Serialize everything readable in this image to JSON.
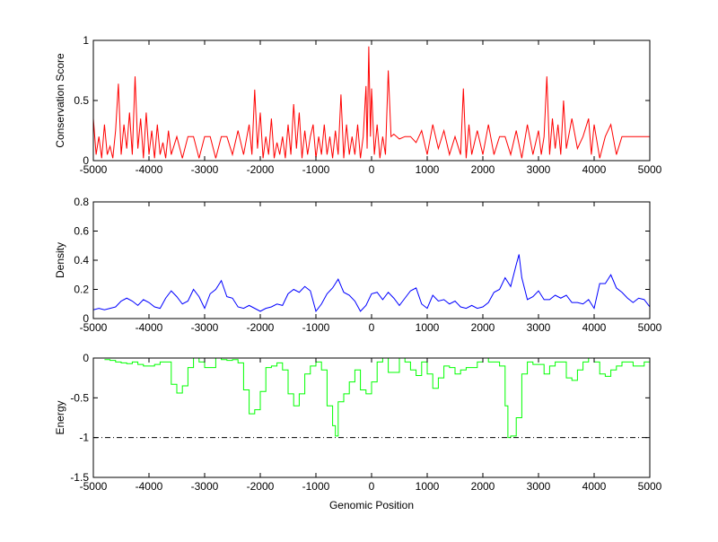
{
  "chart_data": [
    {
      "type": "line",
      "ylabel": "Conservation Score",
      "xlabel": "",
      "xlim": [
        -5000,
        5000
      ],
      "ylim": [
        0,
        1
      ],
      "xticks": [
        -5000,
        -4000,
        -3000,
        -2000,
        -1000,
        0,
        1000,
        2000,
        3000,
        4000,
        5000
      ],
      "yticks": [
        0,
        0.5,
        1
      ],
      "ytick_labels": [
        "0",
        "0.5",
        "1"
      ],
      "color": "#ff0000",
      "x": [
        -5000,
        -4950,
        -4900,
        -4850,
        -4800,
        -4750,
        -4700,
        -4650,
        -4600,
        -4550,
        -4500,
        -4450,
        -4400,
        -4350,
        -4300,
        -4250,
        -4200,
        -4150,
        -4100,
        -4050,
        -4000,
        -3950,
        -3900,
        -3850,
        -3800,
        -3750,
        -3700,
        -3650,
        -3600,
        -3500,
        -3400,
        -3300,
        -3200,
        -3100,
        -3000,
        -2900,
        -2800,
        -2700,
        -2600,
        -2500,
        -2400,
        -2300,
        -2200,
        -2150,
        -2100,
        -2050,
        -2000,
        -1950,
        -1900,
        -1850,
        -1800,
        -1750,
        -1700,
        -1650,
        -1600,
        -1550,
        -1500,
        -1450,
        -1400,
        -1350,
        -1300,
        -1250,
        -1200,
        -1150,
        -1100,
        -1050,
        -1000,
        -950,
        -900,
        -850,
        -800,
        -750,
        -700,
        -650,
        -600,
        -550,
        -500,
        -450,
        -400,
        -350,
        -300,
        -250,
        -200,
        -150,
        -100,
        -80,
        -50,
        -20,
        0,
        50,
        100,
        150,
        200,
        250,
        300,
        350,
        400,
        500,
        600,
        700,
        800,
        900,
        1000,
        1100,
        1200,
        1300,
        1400,
        1500,
        1600,
        1650,
        1700,
        1750,
        1800,
        1900,
        2000,
        2100,
        2200,
        2300,
        2400,
        2500,
        2600,
        2700,
        2800,
        2900,
        3000,
        3050,
        3100,
        3150,
        3200,
        3250,
        3300,
        3350,
        3400,
        3450,
        3500,
        3600,
        3700,
        3800,
        3900,
        3950,
        4000,
        4100,
        4200,
        4300,
        4400,
        4500,
        4600,
        4700,
        4800,
        4900,
        5000
      ],
      "values": [
        0.35,
        0.05,
        0.2,
        0.02,
        0.3,
        0.05,
        0.12,
        0.02,
        0.25,
        0.64,
        0.05,
        0.3,
        0.1,
        0.4,
        0.05,
        0.7,
        0.1,
        0.35,
        0.02,
        0.4,
        0.05,
        0.25,
        0.02,
        0.3,
        0.05,
        0.15,
        0.02,
        0.25,
        0.05,
        0.2,
        0.02,
        0.2,
        0.2,
        0.02,
        0.2,
        0.2,
        0.02,
        0.2,
        0.2,
        0.05,
        0.25,
        0.05,
        0.3,
        0.05,
        0.59,
        0.1,
        0.4,
        0.02,
        0.2,
        0.05,
        0.35,
        0.02,
        0.15,
        0.05,
        0.2,
        0.02,
        0.3,
        0.05,
        0.47,
        0.1,
        0.4,
        0.02,
        0.25,
        0.05,
        0.2,
        0.3,
        0.02,
        0.2,
        0.05,
        0.3,
        0.05,
        0.2,
        0.02,
        0.25,
        0.05,
        0.55,
        0.02,
        0.3,
        0.05,
        0.2,
        0.05,
        0.3,
        0.02,
        0.2,
        0.62,
        0.1,
        0.95,
        0.2,
        0.6,
        0.05,
        0.3,
        0.02,
        0.2,
        0.05,
        0.75,
        0.2,
        0.22,
        0.18,
        0.2,
        0.2,
        0.15,
        0.25,
        0.05,
        0.3,
        0.1,
        0.25,
        0.05,
        0.2,
        0.05,
        0.6,
        0.02,
        0.3,
        0.05,
        0.25,
        0.05,
        0.3,
        0.05,
        0.2,
        0.2,
        0.05,
        0.25,
        0.02,
        0.3,
        0.05,
        0.25,
        0.05,
        0.2,
        0.7,
        0.05,
        0.35,
        0.1,
        0.3,
        0.05,
        0.5,
        0.1,
        0.35,
        0.1,
        0.2,
        0.35,
        0.05,
        0.3,
        0.02,
        0.2,
        0.3,
        0.05,
        0.2,
        0.2,
        0.2,
        0.2,
        0.2,
        0.2
      ]
    },
    {
      "type": "line",
      "ylabel": "Density",
      "xlabel": "",
      "xlim": [
        -5000,
        5000
      ],
      "ylim": [
        0,
        0.8
      ],
      "xticks": [
        -5000,
        -4000,
        -3000,
        -2000,
        -1000,
        0,
        1000,
        2000,
        3000,
        4000,
        5000
      ],
      "yticks": [
        0,
        0.2,
        0.4,
        0.6,
        0.8
      ],
      "ytick_labels": [
        "0",
        "0.2",
        "0.4",
        "0.6",
        "0.8"
      ],
      "color": "#0000ff",
      "x": [
        -5000,
        -4900,
        -4800,
        -4700,
        -4600,
        -4500,
        -4400,
        -4300,
        -4200,
        -4100,
        -4000,
        -3900,
        -3800,
        -3700,
        -3600,
        -3500,
        -3400,
        -3300,
        -3200,
        -3100,
        -3000,
        -2900,
        -2800,
        -2700,
        -2600,
        -2500,
        -2400,
        -2300,
        -2200,
        -2100,
        -2000,
        -1900,
        -1800,
        -1700,
        -1600,
        -1500,
        -1400,
        -1300,
        -1200,
        -1100,
        -1000,
        -900,
        -800,
        -700,
        -600,
        -500,
        -400,
        -300,
        -200,
        -100,
        0,
        100,
        200,
        300,
        400,
        500,
        600,
        700,
        800,
        900,
        1000,
        1100,
        1200,
        1300,
        1400,
        1500,
        1600,
        1700,
        1800,
        1900,
        2000,
        2100,
        2200,
        2300,
        2400,
        2500,
        2600,
        2650,
        2700,
        2800,
        2900,
        3000,
        3100,
        3200,
        3300,
        3400,
        3500,
        3600,
        3700,
        3800,
        3900,
        4000,
        4100,
        4200,
        4300,
        4400,
        4500,
        4600,
        4700,
        4800,
        4900,
        5000
      ],
      "values": [
        0.06,
        0.07,
        0.06,
        0.07,
        0.08,
        0.12,
        0.14,
        0.12,
        0.09,
        0.13,
        0.11,
        0.08,
        0.07,
        0.14,
        0.19,
        0.15,
        0.1,
        0.12,
        0.2,
        0.15,
        0.07,
        0.17,
        0.2,
        0.26,
        0.15,
        0.14,
        0.08,
        0.07,
        0.09,
        0.07,
        0.05,
        0.07,
        0.08,
        0.1,
        0.09,
        0.17,
        0.2,
        0.18,
        0.22,
        0.19,
        0.05,
        0.1,
        0.17,
        0.21,
        0.27,
        0.18,
        0.16,
        0.12,
        0.05,
        0.09,
        0.17,
        0.18,
        0.13,
        0.18,
        0.14,
        0.09,
        0.14,
        0.19,
        0.21,
        0.1,
        0.07,
        0.16,
        0.12,
        0.13,
        0.1,
        0.12,
        0.08,
        0.07,
        0.09,
        0.07,
        0.08,
        0.11,
        0.18,
        0.2,
        0.28,
        0.22,
        0.37,
        0.44,
        0.28,
        0.13,
        0.15,
        0.19,
        0.13,
        0.13,
        0.16,
        0.14,
        0.16,
        0.11,
        0.11,
        0.1,
        0.13,
        0.07,
        0.24,
        0.24,
        0.3,
        0.21,
        0.18,
        0.14,
        0.11,
        0.14,
        0.13,
        0.08
      ]
    },
    {
      "type": "line",
      "ylabel": "Energy",
      "xlabel": "Genomic Position",
      "xlim": [
        -5000,
        5000
      ],
      "ylim": [
        -1.5,
        0
      ],
      "xticks": [
        -5000,
        -4000,
        -3000,
        -2000,
        -1000,
        0,
        1000,
        2000,
        3000,
        4000,
        5000
      ],
      "yticks": [
        -1.5,
        -1,
        -0.5,
        0
      ],
      "ytick_labels": [
        "-1.5",
        "-1",
        "-0.5",
        "0"
      ],
      "color": "#00ff00",
      "threshold": {
        "value": -1,
        "style": "dash-dot",
        "color": "#000000"
      },
      "step": true,
      "x": [
        -4800,
        -4700,
        -4600,
        -4500,
        -4400,
        -4300,
        -4200,
        -4100,
        -4000,
        -3900,
        -3800,
        -3700,
        -3600,
        -3500,
        -3400,
        -3300,
        -3200,
        -3100,
        -3000,
        -2900,
        -2800,
        -2700,
        -2600,
        -2500,
        -2400,
        -2300,
        -2200,
        -2100,
        -2000,
        -1900,
        -1800,
        -1700,
        -1600,
        -1500,
        -1400,
        -1300,
        -1200,
        -1100,
        -1000,
        -900,
        -800,
        -700,
        -650,
        -600,
        -500,
        -400,
        -300,
        -200,
        -100,
        0,
        100,
        200,
        300,
        400,
        500,
        600,
        700,
        800,
        900,
        1000,
        1100,
        1200,
        1300,
        1400,
        1500,
        1600,
        1700,
        1800,
        1900,
        2000,
        2100,
        2200,
        2300,
        2400,
        2450,
        2500,
        2600,
        2700,
        2800,
        2900,
        3000,
        3100,
        3200,
        3300,
        3400,
        3500,
        3600,
        3700,
        3800,
        3900,
        4000,
        4100,
        4200,
        4300,
        4400,
        4500,
        4600,
        4700,
        4800,
        4900,
        5000
      ],
      "values": [
        -0.02,
        -0.03,
        -0.05,
        -0.06,
        -0.07,
        -0.05,
        -0.08,
        -0.1,
        -0.1,
        -0.08,
        -0.05,
        -0.05,
        -0.33,
        -0.44,
        -0.35,
        -0.12,
        0,
        -0.05,
        -0.12,
        -0.12,
        0,
        -0.02,
        -0.03,
        -0.02,
        -0.06,
        -0.4,
        -0.7,
        -0.65,
        -0.42,
        -0.12,
        -0.1,
        -0.06,
        -0.15,
        -0.45,
        -0.6,
        -0.45,
        -0.2,
        -0.1,
        -0.05,
        -0.15,
        -0.6,
        -0.85,
        -0.98,
        -0.55,
        -0.45,
        -0.3,
        -0.15,
        -0.4,
        -0.45,
        -0.3,
        -0.05,
        0,
        -0.18,
        -0.18,
        0,
        -0.05,
        -0.15,
        -0.22,
        -0.05,
        -0.2,
        -0.38,
        -0.25,
        -0.1,
        -0.12,
        -0.2,
        -0.15,
        -0.12,
        -0.12,
        -0.05,
        0,
        -0.05,
        -0.05,
        -0.1,
        -0.6,
        -1.0,
        -0.98,
        -0.75,
        -0.2,
        -0.05,
        -0.08,
        -0.08,
        -0.2,
        -0.1,
        -0.05,
        -0.05,
        -0.25,
        -0.28,
        -0.15,
        -0.05,
        0,
        -0.05,
        -0.2,
        -0.23,
        -0.15,
        -0.1,
        -0.05,
        -0.05,
        -0.1,
        -0.1,
        -0.05,
        0
      ]
    }
  ]
}
